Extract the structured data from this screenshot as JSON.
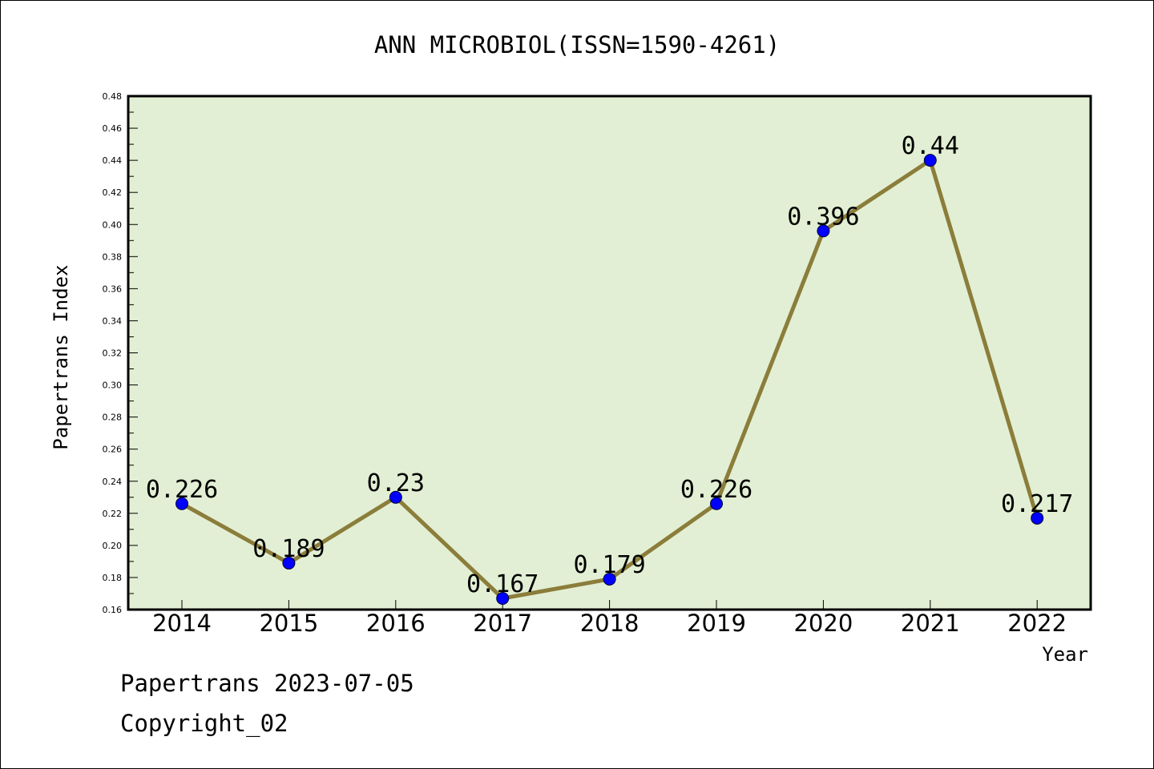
{
  "chart_data": {
    "type": "line",
    "title": "ANN MICROBIOL(ISSN=1590-4261)",
    "xlabel": "Year",
    "ylabel": "Papertrans Index",
    "categories": [
      "2014",
      "2015",
      "2016",
      "2017",
      "2018",
      "2019",
      "2020",
      "2021",
      "2022"
    ],
    "series": [
      {
        "values": [
          0.226,
          0.189,
          0.23,
          0.167,
          0.179,
          0.226,
          0.396,
          0.44,
          0.217
        ]
      }
    ],
    "data_labels": [
      "0.226",
      "0.189",
      "0.23",
      "0.167",
      "0.179",
      "0.226",
      "0.396",
      "0.44",
      "0.217"
    ],
    "ylim": [
      0.16,
      0.48
    ],
    "yticks": [
      "0.16",
      "0.18",
      "0.20",
      "0.22",
      "0.24",
      "0.26",
      "0.28",
      "0.30",
      "0.32",
      "0.34",
      "0.36",
      "0.38",
      "0.40",
      "0.42",
      "0.44",
      "0.46",
      "0.48"
    ],
    "grid": false,
    "legend": "none",
    "colors": {
      "plot_background": "#e2efd4",
      "line": "#8b7d3a",
      "marker": "#0000ff"
    }
  },
  "footer": {
    "line1": "Papertrans 2023-07-05",
    "line2": "Copyright_02"
  }
}
